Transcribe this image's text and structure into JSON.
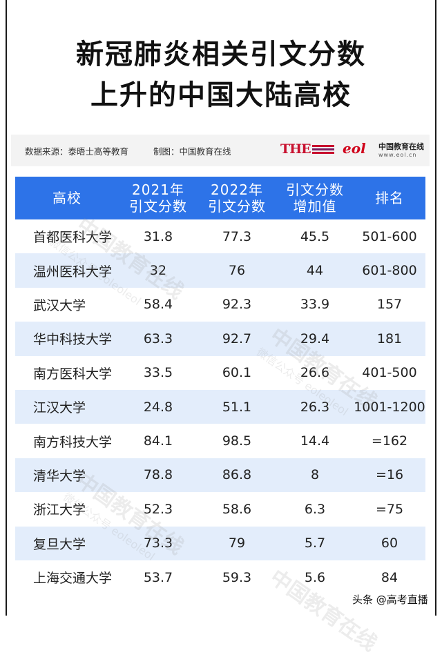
{
  "title": {
    "line1": "新冠肺炎相关引文分数",
    "line2": "上升的中国大陆高校"
  },
  "source": {
    "data_source": "数据来源：泰晤士高等教育",
    "made_by": "制图：中国教育在线",
    "the_logo": "THE",
    "eol_mark": "eol",
    "eol_cn": "中国教育在线",
    "eol_url": "www.eol.cn"
  },
  "table": {
    "headers": [
      "高校",
      "2021年\n引文分数",
      "2022年\n引文分数",
      "引文分数\n增加值",
      "排名"
    ],
    "rows": [
      [
        "首都医科大学",
        "31.8",
        "77.3",
        "45.5",
        "501-600"
      ],
      [
        "温州医科大学",
        "32",
        "76",
        "44",
        "601-800"
      ],
      [
        "武汉大学",
        "58.4",
        "92.3",
        "33.9",
        "157"
      ],
      [
        "华中科技大学",
        "63.3",
        "92.7",
        "29.4",
        "181"
      ],
      [
        "南方医科大学",
        "33.5",
        "60.1",
        "26.6",
        "401-500"
      ],
      [
        "江汉大学",
        "24.8",
        "51.1",
        "26.3",
        "1001-1200"
      ],
      [
        "南方科技大学",
        "84.1",
        "98.5",
        "14.4",
        "=162"
      ],
      [
        "清华大学",
        "78.8",
        "86.8",
        "8",
        "=16"
      ],
      [
        "浙江大学",
        "52.3",
        "58.6",
        "6.3",
        "=75"
      ],
      [
        "复旦大学",
        "73.3",
        "79",
        "5.7",
        "60"
      ],
      [
        "上海交通大学",
        "53.7",
        "59.3",
        "5.6",
        "84"
      ]
    ]
  },
  "watermark": {
    "main": "中国教育在线",
    "sub": "微信公众号 eoleoleol"
  },
  "footer": {
    "brand": "头条 @高考直播"
  },
  "colors": {
    "header_bg": "#2d73e8",
    "alt_row_bg": "#e3edfb",
    "logo_red": "#c8102e"
  }
}
